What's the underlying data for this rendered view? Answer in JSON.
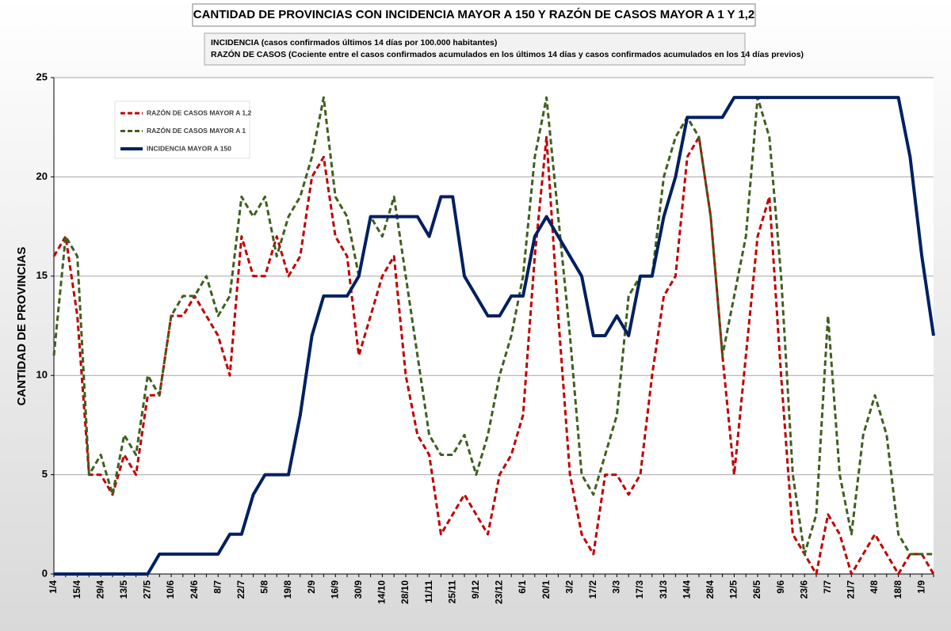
{
  "chart_data": {
    "type": "line",
    "title": "CANTIDAD DE PROVINCIAS CON INCIDENCIA MAYOR A 150 Y RAZÓN DE CASOS MAYOR A 1 Y 1,2",
    "subtitle": [
      "INCIDENCIA (casos confirmados últimos 14 días por 100.000  habitantes)",
      "RAZÓN DE CASOS (Cociente entre el casos confirmados acumulados en los últimos 14 días y casos confirmados acumulados en los 14 días previos)"
    ],
    "y_label": "CANTIDAD DE PROVINCIAS",
    "categories": [
      "1/4",
      null,
      "15/4",
      null,
      "29/4",
      null,
      "13/5",
      null,
      "27/5",
      null,
      "10/6",
      null,
      "24/6",
      null,
      "8/7",
      null,
      "22/7",
      null,
      "5/8",
      null,
      "19/8",
      null,
      "2/9",
      null,
      "16/9",
      null,
      "30/9",
      null,
      "14/10",
      null,
      "28/10",
      null,
      "11/11",
      null,
      "25/11",
      null,
      "9/12",
      null,
      "23/12",
      null,
      "6/1",
      null,
      "20/1",
      null,
      "3/2",
      null,
      "17/2",
      null,
      "3/3",
      null,
      "17/3",
      null,
      "31/3",
      null,
      "14/4",
      null,
      "28/4",
      null,
      "12/5",
      null,
      "26/5",
      null,
      "9/6",
      null,
      "23/6",
      null,
      "7/7",
      null,
      "21/7",
      null,
      "4/8",
      null,
      "18/8",
      null,
      "1/9",
      null
    ],
    "series": [
      {
        "name": "RAZÓN DE CASOS MAYOR A 1,2",
        "color": "#c00000",
        "style": "dashed",
        "values": [
          16,
          17,
          13,
          5,
          5,
          4,
          6,
          5,
          9,
          9,
          13,
          13,
          14,
          13,
          12,
          10,
          17,
          15,
          15,
          17,
          15,
          16,
          20,
          21,
          17,
          16,
          11,
          13,
          15,
          16,
          10,
          7,
          6,
          2,
          3,
          4,
          3,
          2,
          5,
          6,
          8,
          16,
          22,
          13,
          5,
          2,
          1,
          5,
          5,
          4,
          5,
          10,
          14,
          15,
          21,
          22,
          18,
          11,
          5,
          11,
          17,
          19,
          10,
          2,
          1,
          0,
          3,
          2,
          0,
          1,
          2,
          1,
          0,
          1,
          1,
          0
        ]
      },
      {
        "name": "RAZÓN DE CASOS MAYOR A 1",
        "color": "#3f5f1f",
        "style": "dashed",
        "values": [
          11,
          17,
          16,
          5,
          6,
          4,
          7,
          6,
          10,
          9,
          13,
          14,
          14,
          15,
          13,
          14,
          19,
          18,
          19,
          16,
          18,
          19,
          21,
          24,
          19,
          18,
          15,
          18,
          17,
          19,
          15,
          11,
          7,
          6,
          6,
          7,
          5,
          7,
          10,
          12,
          15,
          21,
          24,
          18,
          12,
          5,
          4,
          6,
          8,
          14,
          15,
          15,
          20,
          22,
          23,
          22,
          18,
          11,
          14,
          17,
          24,
          22,
          15,
          5,
          1,
          3,
          13,
          5,
          2,
          7,
          9,
          7,
          2,
          1,
          1,
          1
        ]
      },
      {
        "name": "INCIDENCIA MAYOR A 150",
        "color": "#002060",
        "style": "solid",
        "values": [
          0,
          0,
          0,
          0,
          0,
          0,
          0,
          0,
          0,
          1,
          1,
          1,
          1,
          1,
          1,
          2,
          2,
          4,
          5,
          5,
          5,
          8,
          12,
          14,
          14,
          14,
          15,
          18,
          18,
          18,
          18,
          18,
          17,
          19,
          19,
          15,
          14,
          13,
          13,
          14,
          14,
          17,
          18,
          17,
          16,
          15,
          12,
          12,
          13,
          12,
          15,
          15,
          18,
          20,
          23,
          23,
          23,
          23,
          24,
          24,
          24,
          24,
          24,
          24,
          24,
          24,
          24,
          24,
          24,
          24,
          24,
          24,
          24,
          21,
          16,
          12
        ]
      }
    ],
    "ylim": [
      0,
      25
    ],
    "yticks": [
      0,
      5,
      10,
      15,
      20,
      25
    ],
    "grid": true,
    "legend": "upper left"
  }
}
